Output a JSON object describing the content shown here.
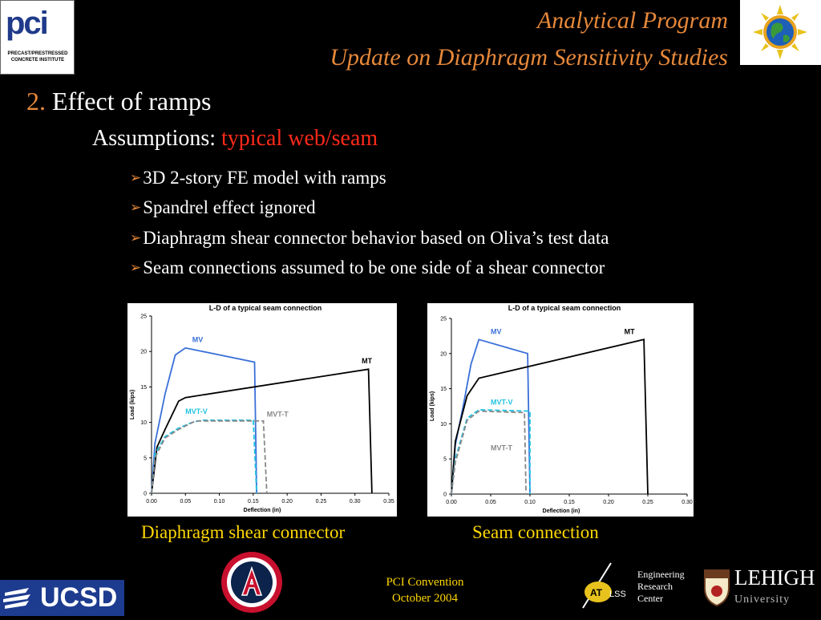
{
  "header": {
    "title_line1": "Analytical Program",
    "title_line2": "Update on Diaphragm Sensitivity Studies",
    "logo_left": {
      "letters": "pci",
      "caption": "PRECAST/PRESTRESSED CONCRETE INSTITUTE"
    },
    "logo_right_icon": "globe-sun-icon"
  },
  "section": {
    "number": "2.",
    "title": "Effect of ramps"
  },
  "assumptions": {
    "label": "Assumptions:",
    "highlight": "typical web/seam"
  },
  "bullets": [
    "3D 2-story FE model with ramps",
    "Spandrel effect ignored",
    "Diaphragm shear connector behavior based on Oliva’s test data",
    "Seam connections assumed to be one side of a shear connector"
  ],
  "captions": [
    "Diaphragm shear connector",
    "Seam connection"
  ],
  "footer": {
    "line1": "PCI Convention",
    "line2": "October 2004",
    "ucsd": "UCSD",
    "erc": [
      "Engineering",
      "Research",
      "Center"
    ],
    "atlss": "ATLSS",
    "lehigh_name": "LEHIGH",
    "lehigh_univ": "University"
  },
  "colors": {
    "accent": "#e6883a",
    "highlight": "#ff2a1a",
    "caption": "#ffd700",
    "MV": "#3a6fd8",
    "MT": "#000000",
    "MVT-V": "#22c3e0",
    "MVT-T": "#888888"
  },
  "chart_data": [
    {
      "type": "line",
      "title": "L-D of a typical seam connection",
      "xlabel": "Deflection (in)",
      "ylabel": "Load (kips)",
      "xlim": [
        0,
        0.35
      ],
      "ylim": [
        0,
        25
      ],
      "xticks": [
        "0.00",
        "0.05",
        "0.10",
        "0.15",
        "0.20",
        "0.25",
        "0.30",
        "0.35"
      ],
      "yticks": [
        "0",
        "5",
        "10",
        "15",
        "20",
        "25"
      ],
      "series": [
        {
          "name": "MV",
          "color": "#3a6fd8",
          "dash": false,
          "points": [
            [
              0,
              0
            ],
            [
              0.005,
              7
            ],
            [
              0.02,
              14
            ],
            [
              0.035,
              19.5
            ],
            [
              0.05,
              20.5
            ],
            [
              0.152,
              18.5
            ],
            [
              0.155,
              0
            ]
          ],
          "label_at": [
            0.06,
            21.3
          ]
        },
        {
          "name": "MT",
          "color": "#000000",
          "dash": false,
          "points": [
            [
              0,
              0
            ],
            [
              0.008,
              6.5
            ],
            [
              0.02,
              9
            ],
            [
              0.04,
              13
            ],
            [
              0.05,
              13.5
            ],
            [
              0.32,
              17.5
            ],
            [
              0.325,
              0
            ]
          ],
          "label_at": [
            0.31,
            18.3
          ]
        },
        {
          "name": "MVT-V",
          "color": "#22c3e0",
          "dash": true,
          "points": [
            [
              0,
              0
            ],
            [
              0.005,
              5.5
            ],
            [
              0.02,
              8
            ],
            [
              0.04,
              9.2
            ],
            [
              0.06,
              10
            ],
            [
              0.075,
              10.3
            ],
            [
              0.15,
              10.3
            ],
            [
              0.155,
              0
            ]
          ],
          "label_at": [
            0.05,
            11.2
          ]
        },
        {
          "name": "MVT-T",
          "color": "#888888",
          "dash": true,
          "points": [
            [
              0,
              0
            ],
            [
              0.005,
              5
            ],
            [
              0.02,
              7.8
            ],
            [
              0.04,
              9
            ],
            [
              0.065,
              10.2
            ],
            [
              0.165,
              10.2
            ],
            [
              0.17,
              0
            ]
          ],
          "label_at": [
            0.17,
            10.8
          ]
        }
      ]
    },
    {
      "type": "line",
      "title": "L-D of a typical seam connection",
      "xlabel": "Deflection (in)",
      "ylabel": "Load (kips)",
      "xlim": [
        0,
        0.3
      ],
      "ylim": [
        0,
        25
      ],
      "xticks": [
        "0.00",
        "0.05",
        "0.10",
        "0.15",
        "0.20",
        "0.25",
        "0.30"
      ],
      "yticks": [
        "0",
        "5",
        "10",
        "15",
        "20",
        "25"
      ],
      "series": [
        {
          "name": "MV",
          "color": "#3a6fd8",
          "dash": false,
          "points": [
            [
              0,
              0
            ],
            [
              0.005,
              7
            ],
            [
              0.015,
              12.5
            ],
            [
              0.025,
              18.5
            ],
            [
              0.035,
              22
            ],
            [
              0.097,
              20
            ],
            [
              0.1,
              0
            ]
          ],
          "label_at": [
            0.05,
            22.8
          ]
        },
        {
          "name": "MT",
          "color": "#000000",
          "dash": false,
          "points": [
            [
              0,
              0
            ],
            [
              0.005,
              7.5
            ],
            [
              0.02,
              14
            ],
            [
              0.035,
              16.5
            ],
            [
              0.245,
              22
            ],
            [
              0.25,
              0
            ]
          ],
          "label_at": [
            0.22,
            22.8
          ]
        },
        {
          "name": "MVT-V",
          "color": "#22c3e0",
          "dash": true,
          "points": [
            [
              0,
              0
            ],
            [
              0.005,
              5
            ],
            [
              0.02,
              10.8
            ],
            [
              0.035,
              12
            ],
            [
              0.1,
              11.8
            ],
            [
              0.1,
              0
            ]
          ],
          "label_at": [
            0.05,
            12.7
          ]
        },
        {
          "name": "MVT-T",
          "color": "#888888",
          "dash": true,
          "points": [
            [
              0,
              0
            ],
            [
              0.005,
              4.5
            ],
            [
              0.02,
              10.5
            ],
            [
              0.035,
              11.8
            ],
            [
              0.093,
              11.6
            ],
            [
              0.095,
              0
            ]
          ],
          "label_at": [
            0.05,
            6.2
          ]
        }
      ]
    }
  ]
}
